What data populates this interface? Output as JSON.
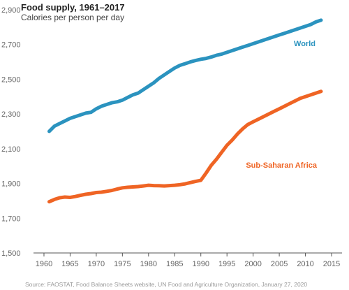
{
  "chart_data": {
    "type": "line",
    "title": "Food supply, 1961–2017",
    "subtitle": "Calories per person per day",
    "xlabel": "",
    "ylabel": "",
    "xlim": [
      1958,
      2017
    ],
    "ylim": [
      1500,
      2900
    ],
    "x_ticks": [
      "1960",
      "1965",
      "1970",
      "1975",
      "1980",
      "1985",
      "1990",
      "1995",
      "2000",
      "2005",
      "2010",
      "2015"
    ],
    "y_ticks": [
      "1,500",
      "1,700",
      "1,900",
      "2,100",
      "2,300",
      "2,500",
      "2,700",
      "2,900"
    ],
    "grid": false,
    "series": [
      {
        "name": "World",
        "color": "#2b93bf",
        "x": [
          1961,
          1962,
          1963,
          1964,
          1965,
          1966,
          1967,
          1968,
          1969,
          1970,
          1971,
          1972,
          1973,
          1974,
          1975,
          1976,
          1977,
          1978,
          1979,
          1980,
          1981,
          1982,
          1983,
          1984,
          1985,
          1986,
          1987,
          1988,
          1989,
          1990,
          1991,
          1992,
          1993,
          1994,
          1995,
          1996,
          1997,
          1998,
          1999,
          2000,
          2001,
          2002,
          2003,
          2004,
          2005,
          2006,
          2007,
          2008,
          2009,
          2010,
          2011,
          2012,
          2013
        ],
        "values": [
          2200,
          2230,
          2245,
          2260,
          2275,
          2285,
          2295,
          2305,
          2310,
          2330,
          2345,
          2355,
          2365,
          2370,
          2380,
          2395,
          2410,
          2420,
          2440,
          2460,
          2480,
          2505,
          2525,
          2545,
          2565,
          2580,
          2590,
          2600,
          2608,
          2615,
          2620,
          2628,
          2638,
          2645,
          2655,
          2665,
          2675,
          2685,
          2695,
          2705,
          2715,
          2725,
          2735,
          2745,
          2755,
          2765,
          2775,
          2785,
          2795,
          2805,
          2815,
          2830,
          2840
        ]
      },
      {
        "name": "Sub-Saharan Africa",
        "color": "#ef6424",
        "x": [
          1961,
          1962,
          1963,
          1964,
          1965,
          1966,
          1967,
          1968,
          1969,
          1970,
          1971,
          1972,
          1973,
          1974,
          1975,
          1976,
          1977,
          1978,
          1979,
          1980,
          1981,
          1982,
          1983,
          1984,
          1985,
          1986,
          1987,
          1988,
          1989,
          1990,
          1991,
          1992,
          1993,
          1994,
          1995,
          1996,
          1997,
          1998,
          1999,
          2000,
          2001,
          2002,
          2003,
          2004,
          2005,
          2006,
          2007,
          2008,
          2009,
          2010,
          2011,
          2012,
          2013
        ],
        "values": [
          1795,
          1808,
          1818,
          1822,
          1820,
          1825,
          1832,
          1838,
          1842,
          1848,
          1850,
          1855,
          1860,
          1868,
          1875,
          1878,
          1880,
          1882,
          1886,
          1890,
          1888,
          1887,
          1886,
          1888,
          1890,
          1893,
          1898,
          1905,
          1912,
          1918,
          1960,
          2005,
          2040,
          2080,
          2120,
          2150,
          2185,
          2215,
          2240,
          2255,
          2270,
          2285,
          2300,
          2315,
          2330,
          2345,
          2360,
          2375,
          2390,
          2400,
          2410,
          2420,
          2430
        ]
      }
    ],
    "series_labels": [
      "World",
      "Sub-Saharan Africa"
    ],
    "source": "Source: FAOSTAT, Food Balance Sheets website, UN Food and Agriculture Organization, January 27, 2020"
  }
}
